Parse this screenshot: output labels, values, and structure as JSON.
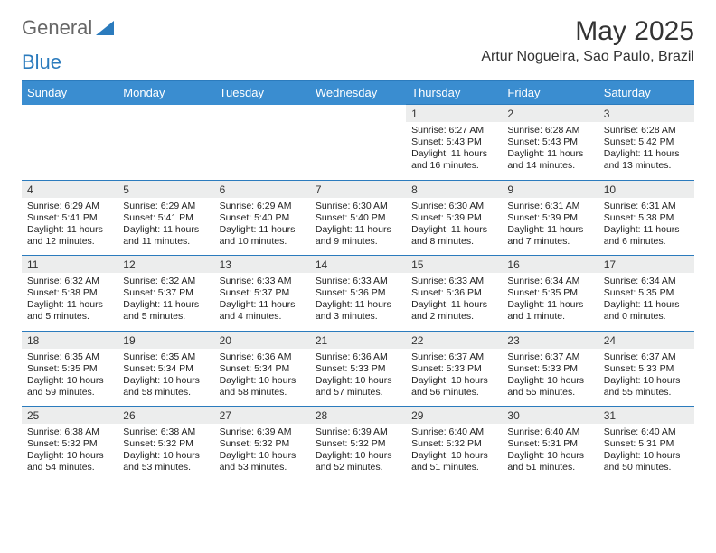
{
  "brand": {
    "part1": "General",
    "part2": "Blue"
  },
  "title": "May 2025",
  "location": "Artur Nogueira, Sao Paulo, Brazil",
  "colors": {
    "accent": "#3a8dd0",
    "rule": "#2b7bbd",
    "daynum_bg": "#eceded"
  },
  "day_headers": [
    "Sunday",
    "Monday",
    "Tuesday",
    "Wednesday",
    "Thursday",
    "Friday",
    "Saturday"
  ],
  "weeks": [
    [
      null,
      null,
      null,
      null,
      {
        "n": "1",
        "sr": "Sunrise: 6:27 AM",
        "ss": "Sunset: 5:43 PM",
        "d1": "Daylight: 11 hours",
        "d2": "and 16 minutes."
      },
      {
        "n": "2",
        "sr": "Sunrise: 6:28 AM",
        "ss": "Sunset: 5:43 PM",
        "d1": "Daylight: 11 hours",
        "d2": "and 14 minutes."
      },
      {
        "n": "3",
        "sr": "Sunrise: 6:28 AM",
        "ss": "Sunset: 5:42 PM",
        "d1": "Daylight: 11 hours",
        "d2": "and 13 minutes."
      }
    ],
    [
      {
        "n": "4",
        "sr": "Sunrise: 6:29 AM",
        "ss": "Sunset: 5:41 PM",
        "d1": "Daylight: 11 hours",
        "d2": "and 12 minutes."
      },
      {
        "n": "5",
        "sr": "Sunrise: 6:29 AM",
        "ss": "Sunset: 5:41 PM",
        "d1": "Daylight: 11 hours",
        "d2": "and 11 minutes."
      },
      {
        "n": "6",
        "sr": "Sunrise: 6:29 AM",
        "ss": "Sunset: 5:40 PM",
        "d1": "Daylight: 11 hours",
        "d2": "and 10 minutes."
      },
      {
        "n": "7",
        "sr": "Sunrise: 6:30 AM",
        "ss": "Sunset: 5:40 PM",
        "d1": "Daylight: 11 hours",
        "d2": "and 9 minutes."
      },
      {
        "n": "8",
        "sr": "Sunrise: 6:30 AM",
        "ss": "Sunset: 5:39 PM",
        "d1": "Daylight: 11 hours",
        "d2": "and 8 minutes."
      },
      {
        "n": "9",
        "sr": "Sunrise: 6:31 AM",
        "ss": "Sunset: 5:39 PM",
        "d1": "Daylight: 11 hours",
        "d2": "and 7 minutes."
      },
      {
        "n": "10",
        "sr": "Sunrise: 6:31 AM",
        "ss": "Sunset: 5:38 PM",
        "d1": "Daylight: 11 hours",
        "d2": "and 6 minutes."
      }
    ],
    [
      {
        "n": "11",
        "sr": "Sunrise: 6:32 AM",
        "ss": "Sunset: 5:38 PM",
        "d1": "Daylight: 11 hours",
        "d2": "and 5 minutes."
      },
      {
        "n": "12",
        "sr": "Sunrise: 6:32 AM",
        "ss": "Sunset: 5:37 PM",
        "d1": "Daylight: 11 hours",
        "d2": "and 5 minutes."
      },
      {
        "n": "13",
        "sr": "Sunrise: 6:33 AM",
        "ss": "Sunset: 5:37 PM",
        "d1": "Daylight: 11 hours",
        "d2": "and 4 minutes."
      },
      {
        "n": "14",
        "sr": "Sunrise: 6:33 AM",
        "ss": "Sunset: 5:36 PM",
        "d1": "Daylight: 11 hours",
        "d2": "and 3 minutes."
      },
      {
        "n": "15",
        "sr": "Sunrise: 6:33 AM",
        "ss": "Sunset: 5:36 PM",
        "d1": "Daylight: 11 hours",
        "d2": "and 2 minutes."
      },
      {
        "n": "16",
        "sr": "Sunrise: 6:34 AM",
        "ss": "Sunset: 5:35 PM",
        "d1": "Daylight: 11 hours",
        "d2": "and 1 minute."
      },
      {
        "n": "17",
        "sr": "Sunrise: 6:34 AM",
        "ss": "Sunset: 5:35 PM",
        "d1": "Daylight: 11 hours",
        "d2": "and 0 minutes."
      }
    ],
    [
      {
        "n": "18",
        "sr": "Sunrise: 6:35 AM",
        "ss": "Sunset: 5:35 PM",
        "d1": "Daylight: 10 hours",
        "d2": "and 59 minutes."
      },
      {
        "n": "19",
        "sr": "Sunrise: 6:35 AM",
        "ss": "Sunset: 5:34 PM",
        "d1": "Daylight: 10 hours",
        "d2": "and 58 minutes."
      },
      {
        "n": "20",
        "sr": "Sunrise: 6:36 AM",
        "ss": "Sunset: 5:34 PM",
        "d1": "Daylight: 10 hours",
        "d2": "and 58 minutes."
      },
      {
        "n": "21",
        "sr": "Sunrise: 6:36 AM",
        "ss": "Sunset: 5:33 PM",
        "d1": "Daylight: 10 hours",
        "d2": "and 57 minutes."
      },
      {
        "n": "22",
        "sr": "Sunrise: 6:37 AM",
        "ss": "Sunset: 5:33 PM",
        "d1": "Daylight: 10 hours",
        "d2": "and 56 minutes."
      },
      {
        "n": "23",
        "sr": "Sunrise: 6:37 AM",
        "ss": "Sunset: 5:33 PM",
        "d1": "Daylight: 10 hours",
        "d2": "and 55 minutes."
      },
      {
        "n": "24",
        "sr": "Sunrise: 6:37 AM",
        "ss": "Sunset: 5:33 PM",
        "d1": "Daylight: 10 hours",
        "d2": "and 55 minutes."
      }
    ],
    [
      {
        "n": "25",
        "sr": "Sunrise: 6:38 AM",
        "ss": "Sunset: 5:32 PM",
        "d1": "Daylight: 10 hours",
        "d2": "and 54 minutes."
      },
      {
        "n": "26",
        "sr": "Sunrise: 6:38 AM",
        "ss": "Sunset: 5:32 PM",
        "d1": "Daylight: 10 hours",
        "d2": "and 53 minutes."
      },
      {
        "n": "27",
        "sr": "Sunrise: 6:39 AM",
        "ss": "Sunset: 5:32 PM",
        "d1": "Daylight: 10 hours",
        "d2": "and 53 minutes."
      },
      {
        "n": "28",
        "sr": "Sunrise: 6:39 AM",
        "ss": "Sunset: 5:32 PM",
        "d1": "Daylight: 10 hours",
        "d2": "and 52 minutes."
      },
      {
        "n": "29",
        "sr": "Sunrise: 6:40 AM",
        "ss": "Sunset: 5:32 PM",
        "d1": "Daylight: 10 hours",
        "d2": "and 51 minutes."
      },
      {
        "n": "30",
        "sr": "Sunrise: 6:40 AM",
        "ss": "Sunset: 5:31 PM",
        "d1": "Daylight: 10 hours",
        "d2": "and 51 minutes."
      },
      {
        "n": "31",
        "sr": "Sunrise: 6:40 AM",
        "ss": "Sunset: 5:31 PM",
        "d1": "Daylight: 10 hours",
        "d2": "and 50 minutes."
      }
    ]
  ]
}
